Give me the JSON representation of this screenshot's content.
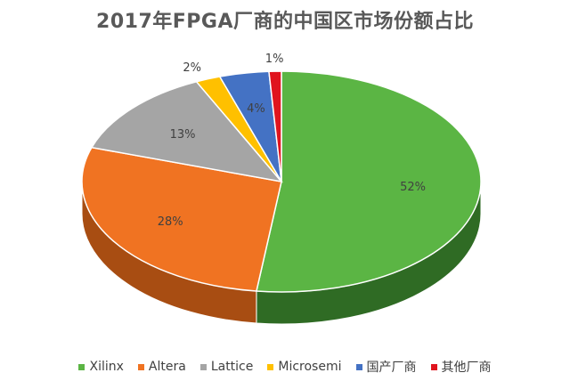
{
  "chart_data": {
    "type": "pie",
    "title": "2017年FPGA厂商的中国区市场份额占比",
    "slices": [
      {
        "name": "Xilinx",
        "value": 52,
        "label": "52%",
        "color": "#5bb544",
        "sideColor": "#2f6b24"
      },
      {
        "name": "Altera",
        "value": 28,
        "label": "28%",
        "color": "#f07322",
        "sideColor": "#a84d12"
      },
      {
        "name": "Lattice",
        "value": 13,
        "label": "13%",
        "color": "#a5a5a5",
        "sideColor": "#6e6e6e"
      },
      {
        "name": "Microsemi",
        "value": 2,
        "label": "2%",
        "color": "#ffc000",
        "sideColor": "#a67d00"
      },
      {
        "name": "国产厂商",
        "value": 4,
        "label": "4%",
        "color": "#4472c4",
        "sideColor": "#2a4a86"
      },
      {
        "name": "其他厂商",
        "value": 1,
        "label": "1%",
        "color": "#e0141e",
        "sideColor": "#8e0d13"
      }
    ],
    "legend_position": "bottom"
  }
}
